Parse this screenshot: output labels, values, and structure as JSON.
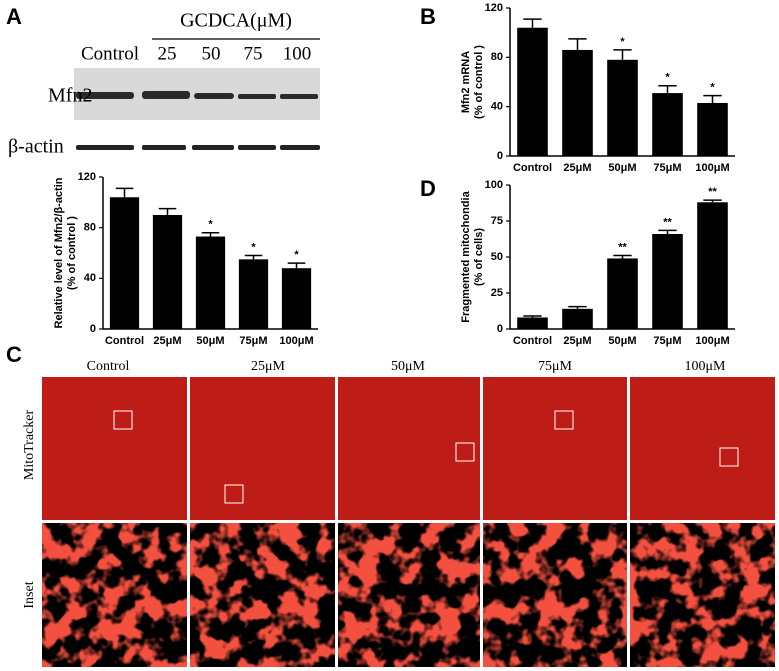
{
  "figure": {
    "panel_labels": [
      "A",
      "B",
      "C",
      "D"
    ],
    "blot": {
      "treatment": "GCDCA(μM)",
      "lanes": [
        "Control",
        "25",
        "50",
        "75",
        "100"
      ],
      "proteins": [
        "Mfn2",
        "β-actin"
      ]
    },
    "microscopy": {
      "columns": [
        "Control",
        "25μM",
        "50μM",
        "75μM",
        "100μM"
      ],
      "rows": [
        "MitoTracker",
        "Inset"
      ]
    }
  },
  "chart_data": [
    {
      "type": "bar",
      "ylabel": [
        "Relative level of Mfn2/β-actin",
        "(% of control )"
      ],
      "categories": [
        "Control",
        "25μM",
        "50μM",
        "75μM",
        "100μM"
      ],
      "values": [
        104,
        90,
        73,
        55,
        48
      ],
      "errors": [
        7,
        5,
        3,
        3,
        4
      ],
      "annotations": [
        null,
        null,
        "*",
        "*",
        "*"
      ],
      "color": "#000000",
      "ylim": [
        0,
        120
      ],
      "yticks": [
        0,
        40,
        80,
        120
      ]
    },
    {
      "type": "bar",
      "ylabel": [
        "Mfn2 mRNA",
        "(% of control )"
      ],
      "categories": [
        "Control",
        "25μM",
        "50μM",
        "75μM",
        "100μM"
      ],
      "values": [
        104,
        86,
        78,
        51,
        43
      ],
      "errors": [
        7,
        9,
        8,
        6,
        6
      ],
      "annotations": [
        null,
        null,
        "*",
        "*",
        "*"
      ],
      "color": "#000000",
      "ylim": [
        0,
        120
      ],
      "yticks": [
        0,
        40,
        80,
        120
      ]
    },
    {
      "type": "bar",
      "ylabel": [
        "Fragmented mitochondia",
        "(% of cells)"
      ],
      "categories": [
        "Control",
        "25μM",
        "50μM",
        "75μM",
        "100μM"
      ],
      "values": [
        8,
        14,
        49,
        66,
        88
      ],
      "errors": [
        1,
        1.5,
        2,
        2.5,
        1.5
      ],
      "annotations": [
        null,
        null,
        "**",
        "**",
        "**"
      ],
      "color": "#000000",
      "ylim": [
        0,
        100
      ],
      "yticks": [
        0,
        25,
        50,
        75,
        100
      ]
    }
  ]
}
